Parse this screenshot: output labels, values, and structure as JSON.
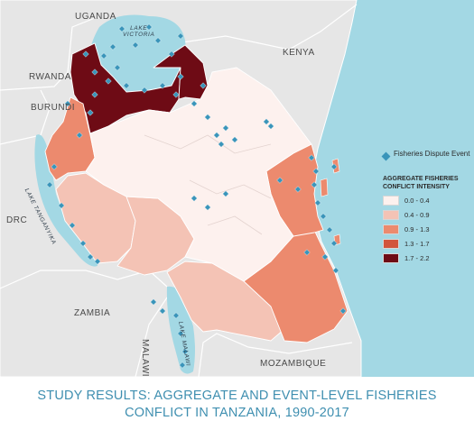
{
  "title": {
    "line1": "STUDY RESULTS:  AGGREGATE AND EVENT-LEVEL FISHERIES",
    "line2": "CONFLICT IN TANZANIA, 1990-2017"
  },
  "countries": {
    "uganda": "UGANDA",
    "kenya": "KENYA",
    "rwanda": "RWANDA",
    "burundi": "BURUNDI",
    "drc": "DRC",
    "zambia": "ZAMBIA",
    "malawi": "MALAWI",
    "mozambique": "MOZAMBIQUE"
  },
  "lakes": {
    "victoria_line1": "LAKE",
    "victoria_line2": "VICTORIA",
    "tanganyika": "LAKE TANGANYIKA",
    "malawi": "LAKE MALAWI"
  },
  "legend": {
    "event_label": "Fisheries Dispute Event",
    "intensity_title": "AGGREGATE FISHERIES CONFLICT INTENSITY",
    "classes": [
      {
        "range": "0.0 - 0.4",
        "color": "#fdf1ee"
      },
      {
        "range": "0.4 - 0.9",
        "color": "#f4c3b5"
      },
      {
        "range": "0.9 - 1.3",
        "color": "#ec8a6e"
      },
      {
        "range": "1.3 - 1.7",
        "color": "#d2553d"
      },
      {
        "range": "1.7 - 2.2",
        "color": "#6e0b15"
      }
    ]
  },
  "colors": {
    "water": "#a3d8e4",
    "land": "#e6e6e6",
    "event_marker": "#3a95ba",
    "title_text": "#3f8fb0"
  }
}
